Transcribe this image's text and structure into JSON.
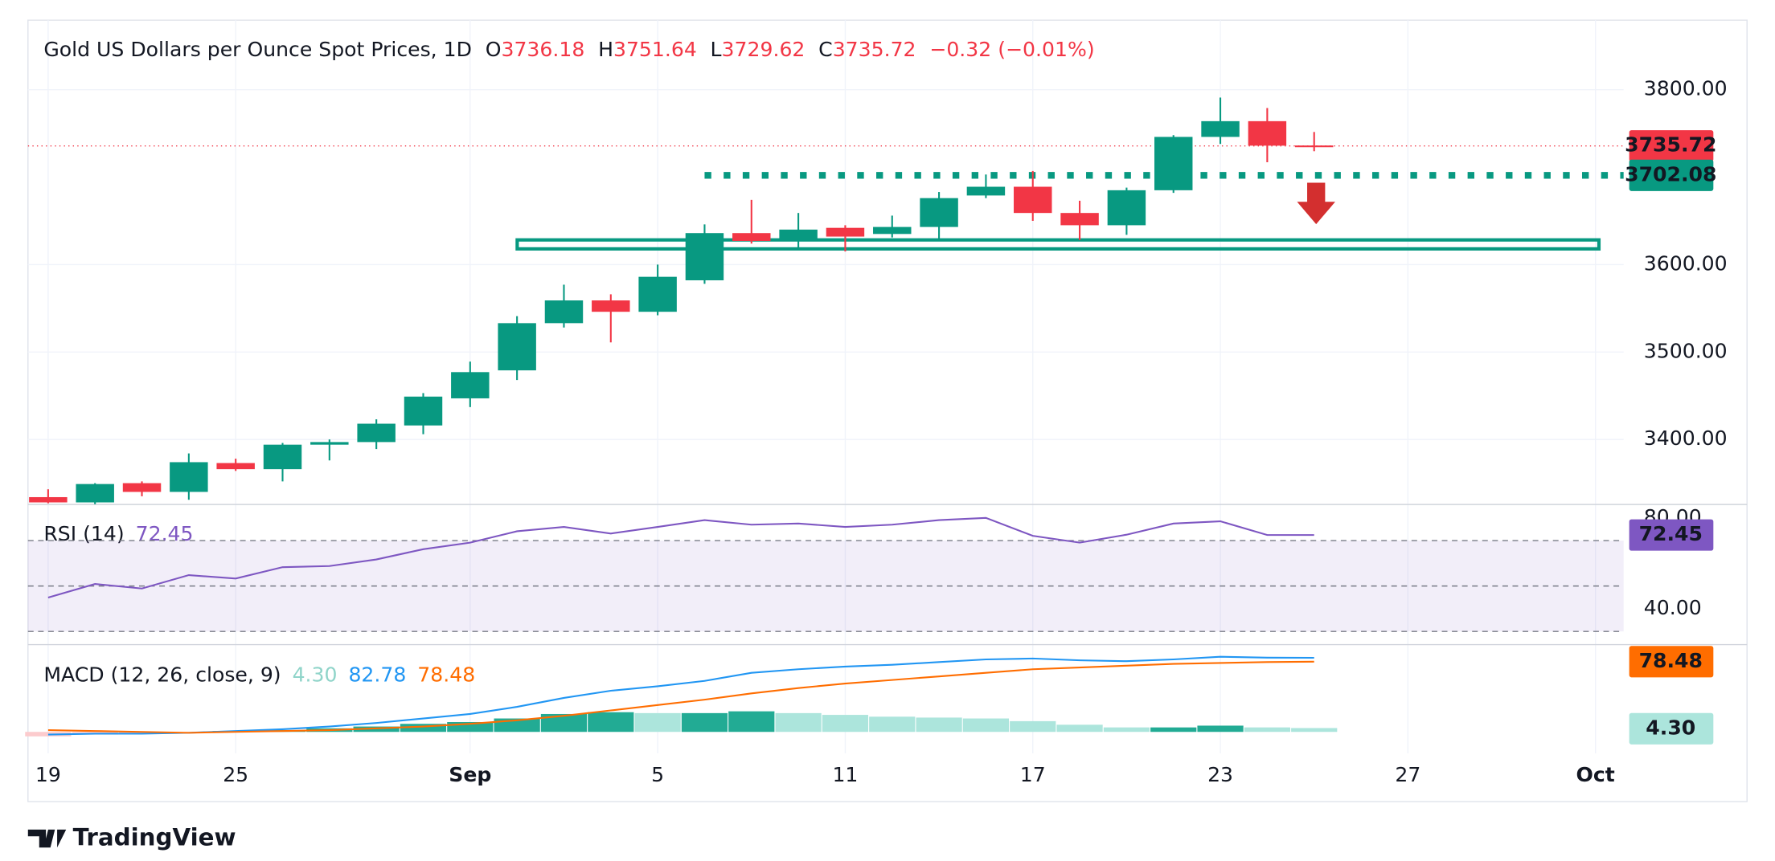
{
  "chart_data": {
    "type": "candlestick",
    "title": "Gold US Dollars per Ounce Spot Prices, 1D",
    "ohlc_letters": [
      "O",
      "H",
      "L",
      "C"
    ],
    "change": "−0.32 (−0.01%)",
    "up_color": "#089981",
    "down_color": "#f23645",
    "candles": {
      "open": [
        3334,
        3328,
        3350,
        3340,
        3373,
        3366,
        3394,
        3397,
        3416,
        3447,
        3479,
        3533,
        3559,
        3546,
        3582,
        3636,
        3627,
        3642,
        3635,
        3643,
        3679,
        3689,
        3659,
        3645,
        3685,
        3746,
        3764,
        3736.18
      ],
      "high": [
        3343,
        3350,
        3352,
        3384,
        3378,
        3396,
        3400,
        3423,
        3453,
        3489,
        3541,
        3577,
        3566,
        3600,
        3646,
        3674,
        3659,
        3645,
        3656,
        3683,
        3703,
        3707,
        3673,
        3688,
        3748,
        3791,
        3779,
        3751.64
      ],
      "low": [
        3327,
        3326,
        3335,
        3331,
        3364,
        3352,
        3376,
        3389,
        3406,
        3437,
        3468,
        3528,
        3511,
        3542,
        3578,
        3624,
        3617,
        3615,
        3631,
        3628,
        3676,
        3650,
        3628,
        3634,
        3682,
        3738,
        3717,
        3729.62
      ],
      "close": [
        3328,
        3349,
        3340,
        3374,
        3366,
        3394,
        3397,
        3418,
        3449,
        3477,
        3533,
        3559,
        3546,
        3586,
        3636,
        3627,
        3640,
        3632,
        3643,
        3676,
        3689,
        3659,
        3645,
        3685,
        3746,
        3764,
        3736,
        3735.72
      ]
    },
    "xlim": [
      -0.43,
      33.6
    ],
    "xticks": [
      {
        "value": 0,
        "label": "19"
      },
      {
        "value": 4,
        "label": "25"
      },
      {
        "value": 9,
        "label": "Sep"
      },
      {
        "value": 13,
        "label": "5"
      },
      {
        "value": 17,
        "label": "11"
      },
      {
        "value": 21,
        "label": "17"
      },
      {
        "value": 25,
        "label": "23"
      },
      {
        "value": 29,
        "label": "27"
      },
      {
        "value": 33,
        "label": "Oct"
      }
    ],
    "ylim": [
      3325.6,
      3879.5
    ],
    "yticks": [
      {
        "value": 3400,
        "label": "3400.00"
      },
      {
        "value": 3500,
        "label": "3500.00"
      },
      {
        "value": 3600,
        "label": "3600.00"
      },
      {
        "value": 3800,
        "label": "3800.00"
      }
    ],
    "level": 3702.08,
    "level_color": "#089981",
    "grid": true,
    "rsi": {
      "name": "RSI (14)",
      "color": "#7e57c2",
      "values": [
        44.9,
        50.9,
        48.9,
        54.8,
        53.3,
        58.3,
        58.8,
        61.7,
        66.2,
        69.1,
        74.1,
        76,
        73.1,
        76,
        79,
        77,
        77.5,
        76,
        77,
        79,
        80,
        72.1,
        69.1,
        72.6,
        77.5,
        78.5,
        72.45,
        72.45
      ],
      "ylim": [
        24.2,
        84.9
      ],
      "yticks": [
        {
          "value": 80,
          "label": "80.00"
        },
        {
          "value": 40,
          "label": "40.00"
        }
      ],
      "bands": [
        70,
        50,
        30
      ]
    },
    "macd": {
      "name": "MACD (12, 26, close, 9)",
      "macd_color": "#2196f3",
      "signal_color": "#ff6d00",
      "hist_color": "#22ab94",
      "ylim": [
        -24,
        95
      ],
      "hist": [
        -5,
        -3,
        -2,
        0,
        1,
        2,
        4,
        6,
        9,
        11,
        15,
        20,
        22,
        21,
        21,
        23,
        21,
        19,
        17,
        16,
        15,
        12,
        8,
        5,
        5,
        7,
        5,
        4.3
      ],
      "hist_labels_last": "4.30",
      "macd": [
        -3,
        -2,
        -2,
        -1,
        1,
        3,
        6,
        10,
        15,
        20,
        28,
        38,
        46,
        51,
        57,
        66,
        70,
        73,
        75,
        78,
        81,
        82,
        80,
        79,
        81,
        84,
        83,
        82.78
      ],
      "signal": [
        2,
        1,
        0,
        -1,
        0,
        1,
        2,
        4,
        6,
        9,
        13,
        18,
        24,
        30,
        36,
        43,
        49,
        54,
        58,
        62,
        66,
        70,
        72,
        74,
        76,
        77,
        78,
        78.48
      ],
      "signal_label_last": "78.48"
    },
    "brand": "TradingView"
  }
}
